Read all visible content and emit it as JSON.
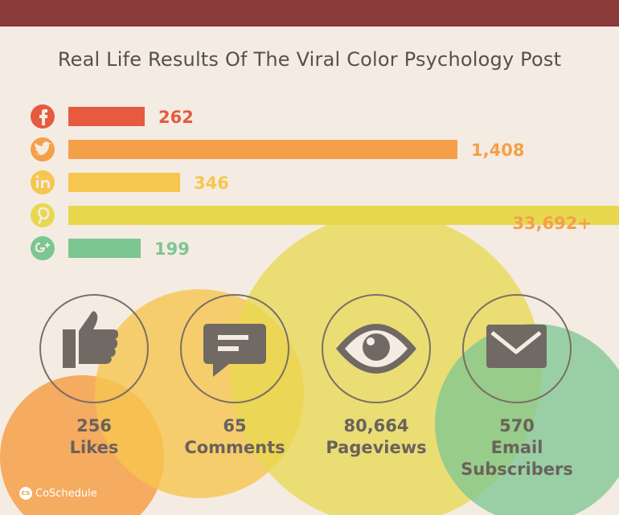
{
  "title": "Real Life Results Of The Viral Color Psychology Post",
  "colors": {
    "background": "#f4ece3",
    "header_bar": "#8a3a38",
    "facebook": "#e65a40",
    "twitter": "#f4a049",
    "linkedin": "#f6c64f",
    "pinterest": "#e7d84f",
    "googleplus": "#7cc691",
    "icon_circle": "#7a6f66",
    "icon_glyph": "#716963"
  },
  "chart_data": {
    "type": "bar",
    "orientation": "horizontal",
    "title": "Real Life Results Of The Viral Color Psychology Post",
    "categories": [
      "facebook",
      "twitter",
      "linkedin",
      "pinterest",
      "google-plus"
    ],
    "icons": [
      "facebook-icon",
      "twitter-icon",
      "linkedin-icon",
      "pinterest-icon",
      "google-plus-icon"
    ],
    "values": [
      262,
      1408,
      346,
      33692,
      199
    ],
    "value_labels": [
      "262",
      "1,408",
      "346",
      "33,692+",
      "199"
    ],
    "notes": "bars are not drawn to a single linear scale; the pinterest bar runs off the right edge"
  },
  "bar_fill_fractions": [
    0.138,
    0.706,
    0.203,
    1.0,
    0.132
  ],
  "stats": [
    {
      "icon": "thumbs-up-icon",
      "value": "256",
      "label": "Likes"
    },
    {
      "icon": "comment-icon",
      "value": "65",
      "label": "Comments"
    },
    {
      "icon": "eye-icon",
      "value": "80,664",
      "label": "Pageviews"
    },
    {
      "icon": "envelope-icon",
      "value": "570",
      "label_lines": [
        "Email",
        "Subscribers"
      ]
    }
  ],
  "brand": {
    "name": "CoSchedule",
    "mark": "cs"
  }
}
